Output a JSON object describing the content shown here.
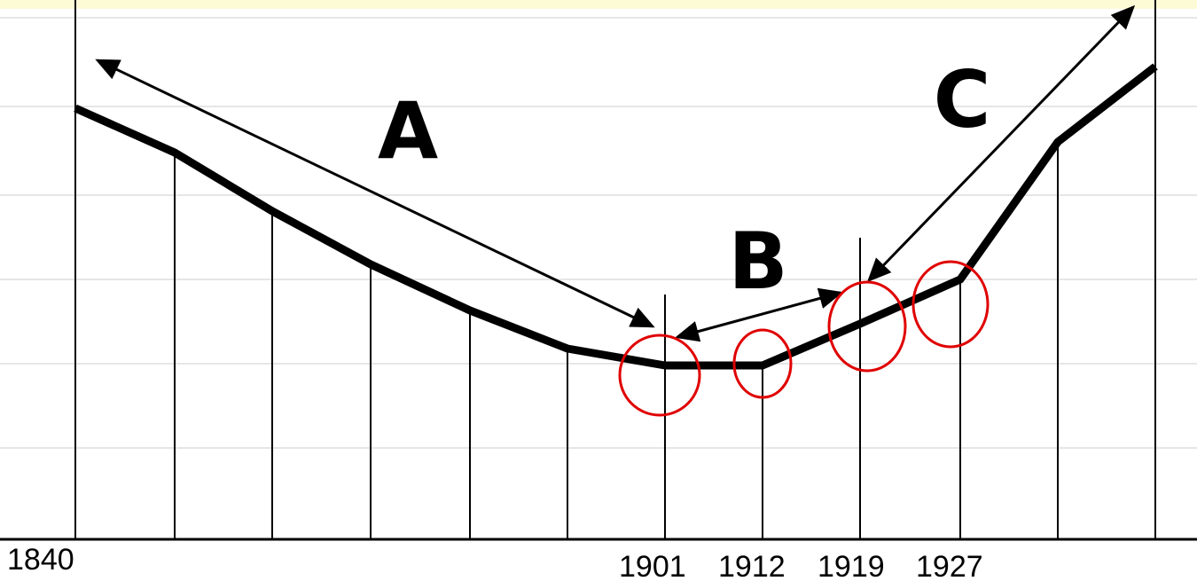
{
  "labels": {
    "a": "A",
    "b": "B",
    "c": "C"
  },
  "years": [
    "1840",
    "1901",
    "1912",
    "1919",
    "1927"
  ]
}
